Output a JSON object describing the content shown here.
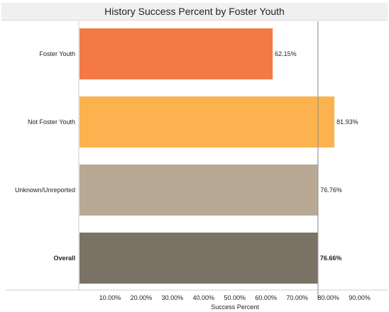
{
  "chart_data": {
    "type": "bar",
    "orientation": "horizontal",
    "title": "History Success Percent by Foster Youth",
    "xlabel": "Success Percent",
    "ylabel": "",
    "categories": [
      "Foster Youth",
      "Not Foster Youth",
      "Unknown/Unreported",
      "Overall"
    ],
    "values": [
      62.15,
      81.93,
      76.76,
      76.66
    ],
    "value_labels": [
      "62.15%",
      "81.93%",
      "76.76%",
      "76.66%"
    ],
    "bold_categories": [
      "Overall"
    ],
    "colors": [
      "#f47a45",
      "#fbb24f",
      "#b8a995",
      "#7b7266"
    ],
    "xlim": [
      0,
      100
    ],
    "ticks": [
      10,
      20,
      30,
      40,
      50,
      60,
      70,
      80,
      90
    ],
    "tick_labels": [
      "10.00%",
      "20.00%",
      "30.00%",
      "40.00%",
      "50.00%",
      "60.00%",
      "70.00%",
      "80.00%",
      "90.00%"
    ],
    "reference_line": 76.66,
    "grid": false,
    "legend": "none"
  }
}
